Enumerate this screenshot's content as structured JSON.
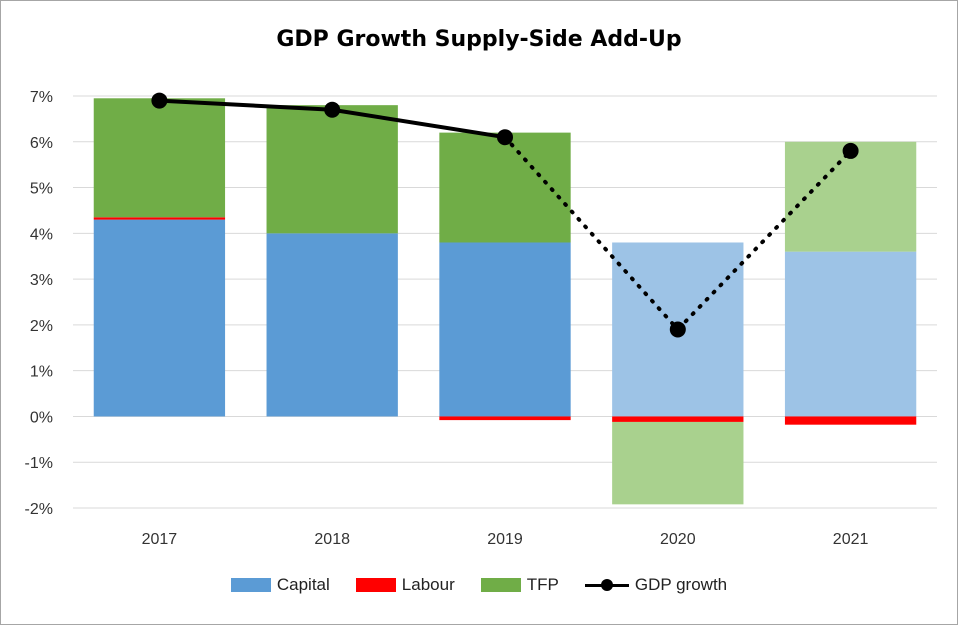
{
  "chart_data": {
    "type": "bar",
    "title": "GDP Growth Supply-Side Add-Up",
    "categories": [
      "2017",
      "2018",
      "2019",
      "2020",
      "2021"
    ],
    "ylim": [
      -2,
      7
    ],
    "yticks": [
      "-2%",
      "-1%",
      "0%",
      "1%",
      "2%",
      "3%",
      "4%",
      "5%",
      "6%",
      "7%"
    ],
    "grid": true,
    "legend_position": "bottom",
    "projected_from_index": 3,
    "series": [
      {
        "name": "Capital",
        "type": "bar",
        "color": "#5b9bd5",
        "projected_color": "#9dc3e6",
        "values": [
          4.3,
          4.0,
          3.8,
          3.8,
          3.6
        ]
      },
      {
        "name": "Labour",
        "type": "bar",
        "color": "#ff0000",
        "values": [
          0.05,
          0.0,
          -0.08,
          -0.12,
          -0.18
        ]
      },
      {
        "name": "TFP",
        "type": "bar",
        "color": "#70ad47",
        "projected_color": "#a9d18e",
        "values": [
          2.6,
          2.8,
          2.4,
          -1.8,
          2.4
        ]
      },
      {
        "name": "GDP growth",
        "type": "line",
        "color": "#000000",
        "values": [
          6.9,
          6.7,
          6.1,
          1.9,
          5.8
        ]
      }
    ]
  }
}
